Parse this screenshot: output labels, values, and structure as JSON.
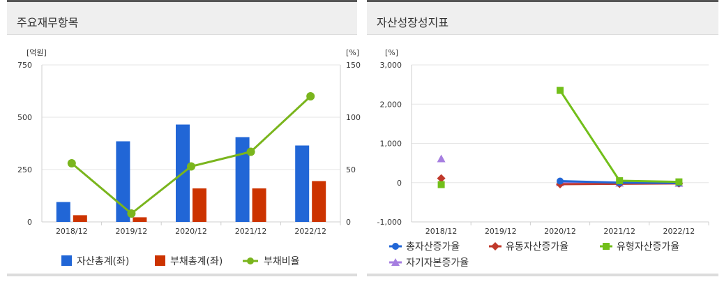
{
  "panels": {
    "left": {
      "title": "주요재무항목"
    },
    "right": {
      "title": "자산성장성지표"
    }
  },
  "colors": {
    "asset": "#2166d6",
    "debt": "#cc3300",
    "ratio": "#7ab51d",
    "total_growth": "#2166d6",
    "current_growth": "#c0392b",
    "tangible_growth": "#72bf1a",
    "equity_growth": "#a67ee0"
  },
  "chart_data": [
    {
      "type": "bar",
      "categories": [
        "2018/12",
        "2019/12",
        "2020/12",
        "2021/12",
        "2022/12"
      ],
      "left_unit": "[억원]",
      "right_unit": "[%]",
      "left_ticks": [
        "750",
        "500",
        "250",
        "0"
      ],
      "right_ticks": [
        "150",
        "100",
        "50",
        "0"
      ],
      "ylim_left": [
        0,
        750
      ],
      "ylim_right": [
        0,
        150
      ],
      "series": [
        {
          "name": "자산총계(좌)",
          "kind": "bar",
          "axis": "left",
          "values": [
            95,
            385,
            465,
            405,
            365
          ]
        },
        {
          "name": "부채총계(좌)",
          "kind": "bar",
          "axis": "left",
          "values": [
            32,
            22,
            160,
            160,
            195
          ]
        },
        {
          "name": "부채비율",
          "kind": "line",
          "axis": "right",
          "values": [
            56,
            8,
            53,
            67,
            120
          ]
        }
      ],
      "grid": true,
      "legend": "bottom"
    },
    {
      "type": "line",
      "categories": [
        "2018/12",
        "2019/12",
        "2020/12",
        "2021/12",
        "2022/12"
      ],
      "unit": "[%]",
      "ticks": [
        "3,000",
        "2,000",
        "1,000",
        "0",
        "-1,000"
      ],
      "ylim": [
        -1000,
        3000
      ],
      "series": [
        {
          "name": "총자산증가율",
          "marker": "circle",
          "values": [
            null,
            null,
            40,
            0,
            -10
          ]
        },
        {
          "name": "유동자산증가율",
          "marker": "diamond",
          "values": [
            110,
            null,
            -40,
            -30,
            -20
          ]
        },
        {
          "name": "유형자산증가율",
          "marker": "square",
          "values": [
            -50,
            null,
            2350,
            50,
            20
          ]
        },
        {
          "name": "자기자본증가율",
          "marker": "triangle",
          "values": [
            610,
            null,
            0,
            -10,
            -15
          ]
        }
      ],
      "grid": true,
      "legend": "bottom"
    }
  ]
}
